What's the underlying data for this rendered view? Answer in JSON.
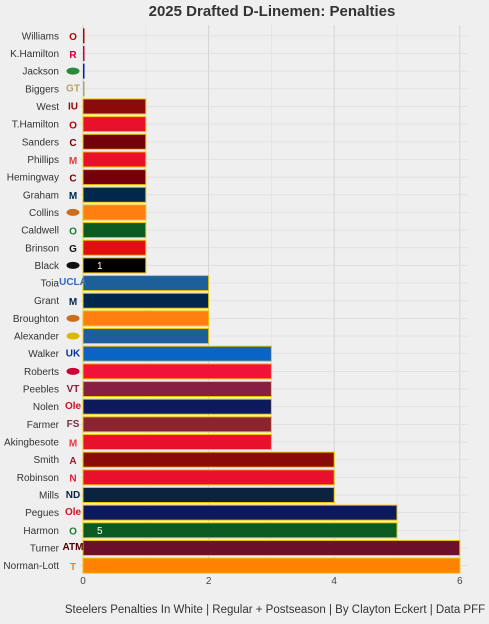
{
  "chart_data": {
    "type": "bar",
    "orientation": "horizontal",
    "title": "2025 Drafted D-Linemen: Penalties",
    "caption": "Steelers Penalties In White | Regular + Postseason | By Clayton Eckert | Data PFF",
    "xlabel": "",
    "ylabel": "",
    "xlim": [
      0,
      6
    ],
    "x_ticks": [
      "0",
      "2",
      "4",
      "6"
    ],
    "grid": true,
    "legend": "none",
    "bar_outline_color": "#e8c400",
    "bars": [
      {
        "player": "Williams",
        "value": 0,
        "color": "#bb0000",
        "logo": "ohio-state-logo",
        "logo_glyph": "O",
        "logo_color": "#bb0000"
      },
      {
        "player": "K.Hamilton",
        "value": 0,
        "color": "#cc0033",
        "logo": "rutgers-logo",
        "logo_glyph": "R",
        "logo_color": "#cc0033"
      },
      {
        "player": "Jackson",
        "value": 0,
        "color": "#0021a5",
        "logo": "florida-gator-logo",
        "logo_glyph": "",
        "logo_color": "#2a8a3a"
      },
      {
        "player": "Biggers",
        "value": 0,
        "color": "#b3a369",
        "logo": "georgia-tech-logo",
        "logo_glyph": "GT",
        "logo_color": "#b3a369"
      },
      {
        "player": "West",
        "value": 1,
        "color": "#8b0a0a",
        "logo": "indiana-logo",
        "logo_glyph": "IU",
        "logo_color": "#990000"
      },
      {
        "player": "T.Hamilton",
        "value": 1,
        "color": "#e8102a",
        "logo": "ohio-state-logo",
        "logo_glyph": "O",
        "logo_color": "#bb0000"
      },
      {
        "player": "Sanders",
        "value": 1,
        "color": "#73000a",
        "logo": "south-carolina-logo",
        "logo_glyph": "C",
        "logo_color": "#73000a"
      },
      {
        "player": "Phillips",
        "value": 1,
        "color": "#e8102a",
        "logo": "maryland-logo",
        "logo_glyph": "M",
        "logo_color": "#e03a3e"
      },
      {
        "player": "Hemingway",
        "value": 1,
        "color": "#73000a",
        "logo": "south-carolina-logo",
        "logo_glyph": "C",
        "logo_color": "#73000a"
      },
      {
        "player": "Graham",
        "value": 1,
        "color": "#00274c",
        "logo": "michigan-logo",
        "logo_glyph": "M",
        "logo_color": "#00274c"
      },
      {
        "player": "Collins",
        "value": 1,
        "color": "#ff7f11",
        "logo": "texas-longhorn-logo",
        "logo_glyph": "",
        "logo_color": "#cc6d1e"
      },
      {
        "player": "Caldwell",
        "value": 1,
        "color": "#0b5a22",
        "logo": "oregon-logo",
        "logo_glyph": "O",
        "logo_color": "#1d7a2e"
      },
      {
        "player": "Brinson",
        "value": 1,
        "color": "#e01010",
        "logo": "georgia-logo",
        "logo_glyph": "G",
        "logo_color": "#111111"
      },
      {
        "player": "Black",
        "value": 1,
        "color": "#000000",
        "logo": "iowa-hawkeye-logo",
        "logo_glyph": "",
        "logo_color": "#111111",
        "steelers_label": "1"
      },
      {
        "player": "Toia",
        "value": 2,
        "color": "#1f5f99",
        "logo": "ucla-logo",
        "logo_glyph": "UCLA",
        "logo_color": "#2d68c4"
      },
      {
        "player": "Grant",
        "value": 2,
        "color": "#00274c",
        "logo": "michigan-logo",
        "logo_glyph": "M",
        "logo_color": "#00274c"
      },
      {
        "player": "Broughton",
        "value": 2,
        "color": "#ff7f11",
        "logo": "texas-longhorn-logo",
        "logo_glyph": "",
        "logo_color": "#cc6d1e"
      },
      {
        "player": "Alexander",
        "value": 2,
        "color": "#1f5f99",
        "logo": "ucla-logo",
        "logo_glyph": "",
        "logo_color": "#d8b800"
      },
      {
        "player": "Walker",
        "value": 3,
        "color": "#0b63c6",
        "logo": "kentucky-logo",
        "logo_glyph": "UK",
        "logo_color": "#0033a0"
      },
      {
        "player": "Roberts",
        "value": 3,
        "color": "#f0123a",
        "logo": "smu-logo",
        "logo_glyph": "",
        "logo_color": "#cc0035"
      },
      {
        "player": "Peebles",
        "value": 3,
        "color": "#861f41",
        "logo": "virginia-tech-logo",
        "logo_glyph": "VT",
        "logo_color": "#861f41"
      },
      {
        "player": "Nolen",
        "value": 3,
        "color": "#0c1a5c",
        "logo": "ole-miss-logo",
        "logo_glyph": "Ole",
        "logo_color": "#ce1126"
      },
      {
        "player": "Farmer",
        "value": 3,
        "color": "#8a2432",
        "logo": "florida-state-logo",
        "logo_glyph": "FS",
        "logo_color": "#782f40"
      },
      {
        "player": "Akingbesote",
        "value": 3,
        "color": "#e8102a",
        "logo": "maryland-logo",
        "logo_glyph": "M",
        "logo_color": "#e03a3e"
      },
      {
        "player": "Smith",
        "value": 4,
        "color": "#8b0a0a",
        "logo": "alabama-logo",
        "logo_glyph": "A",
        "logo_color": "#9e1b32"
      },
      {
        "player": "Robinson",
        "value": 4,
        "color": "#e8102a",
        "logo": "nebraska-logo",
        "logo_glyph": "N",
        "logo_color": "#e41c38"
      },
      {
        "player": "Mills",
        "value": 4,
        "color": "#0c2340",
        "logo": "notre-dame-logo",
        "logo_glyph": "ND",
        "logo_color": "#0c2340"
      },
      {
        "player": "Pegues",
        "value": 5,
        "color": "#0c1a5c",
        "logo": "ole-miss-logo",
        "logo_glyph": "Ole",
        "logo_color": "#ce1126"
      },
      {
        "player": "Harmon",
        "value": 5,
        "color": "#0b5a22",
        "logo": "oregon-logo",
        "logo_glyph": "O",
        "logo_color": "#1d7a2e",
        "steelers_label": "5"
      },
      {
        "player": "Turner",
        "value": 6,
        "color": "#6b0f2a",
        "logo": "texas-am-logo",
        "logo_glyph": "ATM",
        "logo_color": "#500000"
      },
      {
        "player": "Norman-Lott",
        "value": 6,
        "color": "#ff8200",
        "logo": "tennessee-logo",
        "logo_glyph": "T",
        "logo_color": "#ff8200"
      }
    ]
  }
}
